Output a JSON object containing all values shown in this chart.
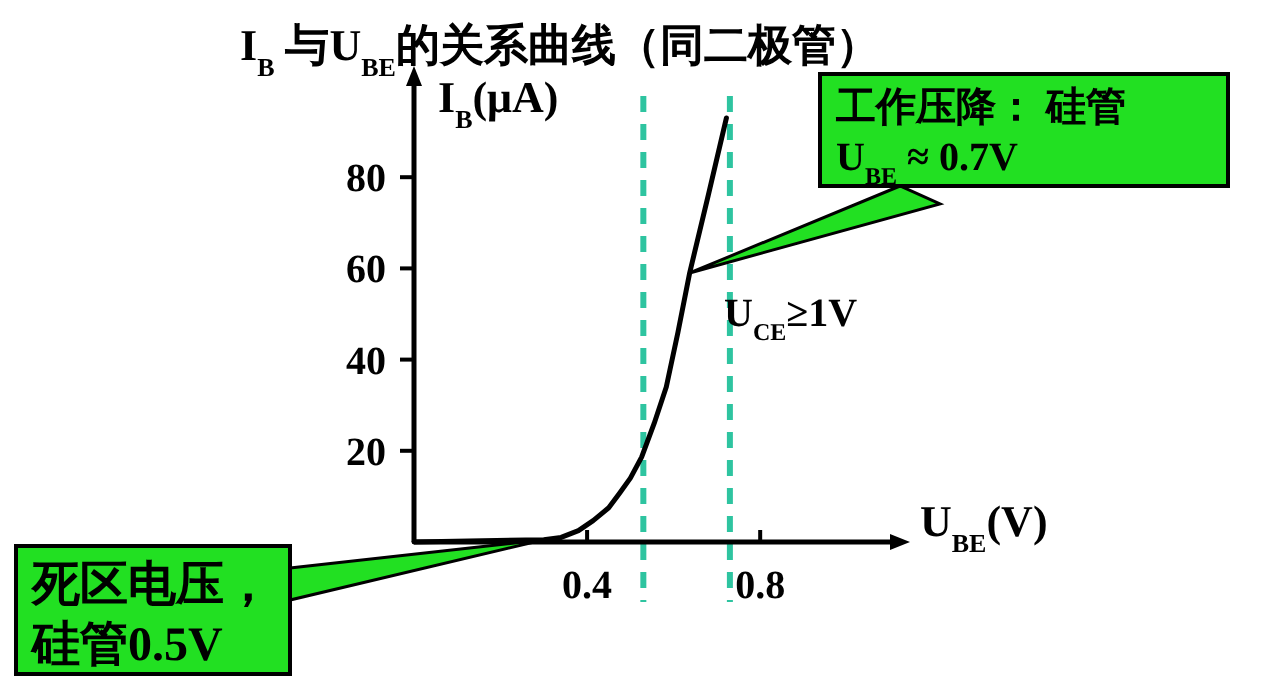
{
  "chart_data": {
    "type": "line",
    "title": "I$_{B}$ 与U$_{BE}$的关系曲线（同二极管）",
    "xlabel": "U$_{BE}$(V)",
    "ylabel": "I$_{B}$(μA)",
    "series": [
      {
        "color": "#000000",
        "x": [
          0,
          0.3,
          0.34,
          0.38,
          0.414,
          0.45,
          0.475,
          0.5,
          0.526,
          0.555,
          0.583,
          0.61,
          0.637,
          0.68,
          0.722
        ],
        "values": [
          0,
          0.5,
          1,
          2.5,
          4.7,
          7.5,
          10.7,
          14,
          18.6,
          26,
          34,
          46,
          59,
          76,
          93
        ]
      }
    ],
    "xlim": [
      0,
      1.1
    ],
    "ylim": [
      0,
      100
    ],
    "xticks": [
      0.4,
      0.8
    ],
    "yticks": [
      20,
      40,
      60,
      80
    ],
    "ref_lines": [
      {
        "axis": "x",
        "value": 0.53,
        "color": "#2ec4a0",
        "line_style": "dashed"
      },
      {
        "axis": "x",
        "value": 0.73,
        "color": "#2ec4a0",
        "line_style": "dashed"
      }
    ],
    "annotations": [
      {
        "text": "死区电压，硅管0.5V",
        "x": 0.3,
        "y": 0.5
      },
      {
        "text": "工作压降：  硅管U$_{BE}$ ≈ 0.7V",
        "x": 0.637,
        "y": 59
      },
      "U$_{CE}$≥1V"
    ]
  }
}
